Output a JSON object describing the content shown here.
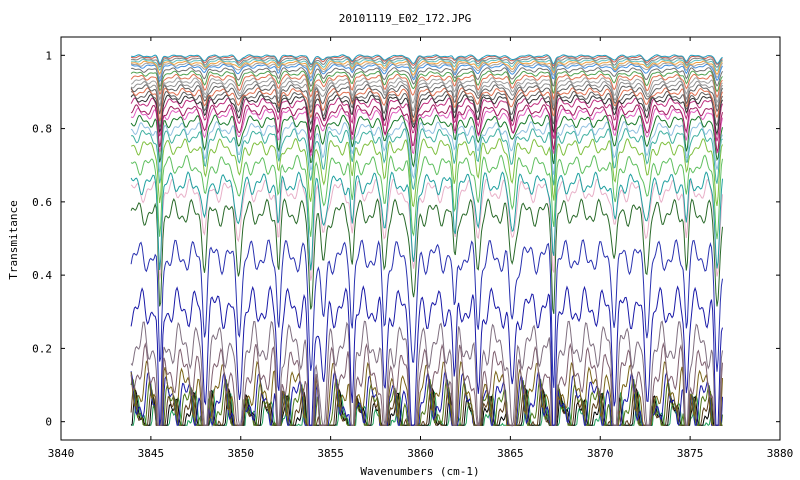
{
  "chart_data": {
    "type": "line",
    "title": "20101119_E02_172.JPG",
    "xlabel": "Wavenumbers (cm-1)",
    "ylabel": "Transmitance",
    "xlim": [
      3840,
      3880
    ],
    "ylim": [
      -0.05,
      1.05
    ],
    "xticks": [
      3840,
      3845,
      3850,
      3855,
      3860,
      3865,
      3870,
      3875,
      3880
    ],
    "yticks": [
      0,
      0.2,
      0.4,
      0.6,
      0.8,
      1
    ],
    "ytick_labels": [
      "0",
      "0.2",
      "0.4",
      "0.6",
      "0.8",
      "1"
    ],
    "grid": false,
    "legend": "none",
    "x_range": [
      3843.9,
      3876.8
    ],
    "absorption_lines": [
      3845.5,
      3848.0,
      3849.9,
      3852.1,
      3853.9,
      3854.6,
      3856.2,
      3858.0,
      3859.6,
      3861.9,
      3863.2,
      3865.1,
      3867.4,
      3870.8,
      3872.6,
      3874.8,
      3876.5
    ],
    "series_baselines": [
      0.003,
      0.01,
      0.02,
      0.04,
      0.06,
      0.09,
      0.14,
      0.21,
      0.31,
      0.45,
      0.57,
      0.63,
      0.65,
      0.7,
      0.75,
      0.78,
      0.8,
      0.82,
      0.84,
      0.85,
      0.87,
      0.88,
      0.89,
      0.9,
      0.91,
      0.92,
      0.93,
      0.94,
      0.95,
      0.96,
      0.97,
      0.975,
      0.98,
      0.985,
      0.99,
      0.995,
      0.998
    ],
    "series_colors": [
      "#1fa05a",
      "#000000",
      "#5a3a1a",
      "#4f7a1a",
      "#1a1aa8",
      "#7a6418",
      "#806070",
      "#807080",
      "#1a1aa8",
      "#2a32b0",
      "#2a6a2a",
      "#e8b0c8",
      "#20a0a0",
      "#60c060",
      "#80c040",
      "#40b0a0",
      "#90c0e0",
      "#1a7a2a",
      "#e060c0",
      "#a02060",
      "#c03080",
      "#303030",
      "#606060",
      "#e07050",
      "#606060",
      "#909090",
      "#a0a0a0",
      "#e07050",
      "#50a050",
      "#707070",
      "#4090e0",
      "#a0a0a0",
      "#f0a040",
      "#60c0c0",
      "#808080",
      "#d06050",
      "#20a0c0"
    ]
  }
}
